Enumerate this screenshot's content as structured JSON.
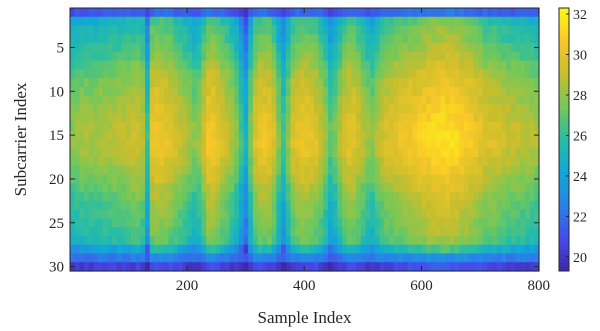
{
  "chart_data": {
    "type": "heatmap",
    "title": "",
    "xlabel": "Sample Index",
    "ylabel": "Subcarrier Index",
    "xlim": [
      1,
      800
    ],
    "ylim": [
      1,
      30
    ],
    "y_reversed": true,
    "x_ticks": [
      {
        "value": 200,
        "label": "200"
      },
      {
        "value": 400,
        "label": "400"
      },
      {
        "value": 600,
        "label": "600"
      },
      {
        "value": 800,
        "label": "800"
      }
    ],
    "y_ticks": [
      {
        "value": 5,
        "label": "5"
      },
      {
        "value": 10,
        "label": "10"
      },
      {
        "value": 15,
        "label": "15"
      },
      {
        "value": 20,
        "label": "20"
      },
      {
        "value": 25,
        "label": "25"
      },
      {
        "value": 30,
        "label": "30"
      }
    ],
    "colormap": "parula",
    "color_range": [
      19.3,
      32.3
    ],
    "colorbar_ticks": [
      {
        "value": 20,
        "label": "20"
      },
      {
        "value": 22,
        "label": "22"
      },
      {
        "value": 24,
        "label": "24"
      },
      {
        "value": 26,
        "label": "26"
      },
      {
        "value": 28,
        "label": "28"
      },
      {
        "value": 30,
        "label": "30"
      },
      {
        "value": 32,
        "label": "32"
      }
    ],
    "grid": false,
    "row_profile": [
      21.5,
      25.5,
      26.0,
      26.3,
      26.7,
      27.0,
      27.5,
      27.9,
      28.2,
      28.4,
      28.6,
      28.8,
      29.0,
      29.2,
      29.3,
      29.3,
      29.1,
      28.8,
      28.5,
      28.2,
      27.8,
      27.5,
      27.2,
      27.0,
      26.8,
      26.6,
      26.2,
      24.5,
      22.5,
      20.5
    ],
    "column_profile": {
      "sample_index": [
        1,
        20,
        50,
        80,
        100,
        115,
        125,
        132,
        140,
        150,
        165,
        180,
        200,
        215,
        225,
        232,
        240,
        250,
        262,
        275,
        285,
        295,
        300,
        305,
        312,
        325,
        340,
        350,
        360,
        365,
        372,
        380,
        395,
        405,
        420,
        435,
        445,
        455,
        465,
        478,
        488,
        500,
        515,
        525,
        540,
        560,
        580,
        600,
        620,
        640,
        660,
        680,
        700,
        710,
        720,
        740,
        760,
        780,
        800
      ],
      "offset": [
        -1.5,
        -1.0,
        -0.8,
        -0.5,
        -0.3,
        0.2,
        -0.5,
        -3.5,
        0.8,
        1.3,
        0.8,
        0.3,
        -0.8,
        -1.5,
        -0.8,
        0.8,
        1.5,
        1.0,
        0.3,
        -0.6,
        -1.5,
        -3.5,
        -4.5,
        -3.0,
        0.0,
        1.0,
        1.0,
        0.0,
        -2.5,
        -3.0,
        -1.5,
        0.3,
        1.0,
        1.0,
        0.5,
        -0.8,
        -2.5,
        -1.5,
        0.0,
        0.8,
        0.5,
        -0.5,
        -1.5,
        -0.5,
        0.3,
        0.8,
        1.2,
        1.6,
        2.0,
        2.2,
        2.0,
        1.5,
        0.8,
        0.3,
        0.5,
        0.0,
        -0.3,
        -0.5,
        -1.0
      ]
    }
  }
}
